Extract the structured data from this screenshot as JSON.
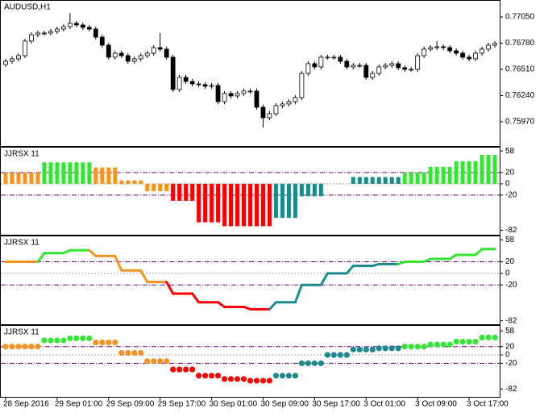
{
  "chart_data": [
    {
      "type": "candlestick",
      "title": "AUDUSD,H1",
      "bull_color": "#ffffff",
      "bear_color": "#000000",
      "edge_color": "#000000",
      "xlim": [
        -0.75,
        76.75
      ],
      "ylim": [
        0.7572,
        0.77216
      ],
      "yticks": [
        {
          "value": 0.7705,
          "label": "0.77050"
        },
        {
          "value": 0.7678,
          "label": "0.76780"
        },
        {
          "value": 0.7651,
          "label": "0.76510"
        },
        {
          "value": 0.7624,
          "label": "0.76240"
        },
        {
          "value": 0.7597,
          "label": "0.75970"
        }
      ],
      "open": [
        0.7656,
        0.76593,
        0.76618,
        0.76651,
        0.76801,
        0.76867,
        0.76884,
        0.76884,
        0.769,
        0.76925,
        0.7695,
        0.76984,
        0.76967,
        0.76942,
        0.76925,
        0.76842,
        0.76759,
        0.76635,
        0.76676,
        0.76651,
        0.76593,
        0.76618,
        0.76651,
        0.76676,
        0.76734,
        0.76718,
        0.76635,
        0.76302,
        0.76427,
        0.76385,
        0.7636,
        0.76352,
        0.76335,
        0.76344,
        0.76177,
        0.76261,
        0.76236,
        0.76261,
        0.76286,
        0.76286,
        0.76119,
        0.76011,
        0.76053,
        0.76136,
        0.76153,
        0.76177,
        0.76219,
        0.76468,
        0.76568,
        0.76535,
        0.76635,
        0.76635,
        0.76635,
        0.76593,
        0.76535,
        0.76551,
        0.76551,
        0.76427,
        0.76468,
        0.76535,
        0.76551,
        0.76568,
        0.76527,
        0.7651,
        0.7651,
        0.76651,
        0.76718,
        0.76734,
        0.76743,
        0.76734,
        0.76701,
        0.76676,
        0.76635,
        0.76618,
        0.76676,
        0.76718,
        0.76759
      ],
      "high": [
        0.76618,
        0.76643,
        0.76676,
        0.76826,
        0.76892,
        0.76909,
        0.76909,
        0.76925,
        0.7695,
        0.76975,
        0.7709,
        0.77009,
        0.76992,
        0.76967,
        0.7695,
        0.76867,
        0.76784,
        0.76701,
        0.76701,
        0.76676,
        0.76643,
        0.76676,
        0.76701,
        0.76759,
        0.76884,
        0.76743,
        0.7666,
        0.76452,
        0.76452,
        0.7641,
        0.76385,
        0.76377,
        0.76369,
        0.76369,
        0.76286,
        0.76286,
        0.76286,
        0.76311,
        0.76311,
        0.76311,
        0.76144,
        0.76078,
        0.76161,
        0.76178,
        0.76202,
        0.76244,
        0.76493,
        0.76593,
        0.76593,
        0.7666,
        0.7666,
        0.7666,
        0.7666,
        0.76618,
        0.76576,
        0.76576,
        0.76576,
        0.76493,
        0.7656,
        0.76576,
        0.76593,
        0.76593,
        0.76552,
        0.76535,
        0.76676,
        0.76743,
        0.76759,
        0.768,
        0.76768,
        0.76759,
        0.76726,
        0.76701,
        0.7666,
        0.76701,
        0.76743,
        0.76784,
        0.76801
      ],
      "low": [
        0.76535,
        0.76568,
        0.76593,
        0.76626,
        0.76776,
        0.76842,
        0.76859,
        0.76859,
        0.76875,
        0.769,
        0.76925,
        0.76942,
        0.76917,
        0.769,
        0.76817,
        0.76734,
        0.7661,
        0.7661,
        0.76626,
        0.76568,
        0.76568,
        0.76593,
        0.76626,
        0.76651,
        0.76693,
        0.7661,
        0.76277,
        0.76277,
        0.7636,
        0.76335,
        0.76327,
        0.7631,
        0.7631,
        0.76152,
        0.76152,
        0.76211,
        0.76211,
        0.76236,
        0.76261,
        0.76094,
        0.7591,
        0.75986,
        0.76028,
        0.76111,
        0.76128,
        0.76152,
        0.76194,
        0.76443,
        0.7651,
        0.7651,
        0.7661,
        0.7661,
        0.76568,
        0.7651,
        0.7651,
        0.76526,
        0.76402,
        0.76402,
        0.76443,
        0.7651,
        0.76526,
        0.76502,
        0.76485,
        0.76485,
        0.76485,
        0.76626,
        0.76693,
        0.76709,
        0.76709,
        0.76676,
        0.76651,
        0.7661,
        0.76593,
        0.76593,
        0.76651,
        0.76693,
        0.76734
      ],
      "close": [
        0.76593,
        0.76618,
        0.76651,
        0.76801,
        0.76867,
        0.76884,
        0.76884,
        0.769,
        0.76925,
        0.7695,
        0.76984,
        0.76967,
        0.76942,
        0.76925,
        0.76842,
        0.76759,
        0.76635,
        0.76676,
        0.76651,
        0.76593,
        0.76618,
        0.76651,
        0.76676,
        0.76734,
        0.76718,
        0.76635,
        0.76302,
        0.76427,
        0.76385,
        0.7636,
        0.76352,
        0.76335,
        0.76344,
        0.76177,
        0.76261,
        0.76236,
        0.76261,
        0.76286,
        0.76286,
        0.76119,
        0.76011,
        0.76053,
        0.76136,
        0.76153,
        0.76177,
        0.76219,
        0.76468,
        0.76568,
        0.76535,
        0.76635,
        0.76635,
        0.76635,
        0.76593,
        0.76535,
        0.76551,
        0.76551,
        0.76427,
        0.76468,
        0.76535,
        0.76551,
        0.76568,
        0.76527,
        0.7651,
        0.7651,
        0.76651,
        0.76718,
        0.76734,
        0.76743,
        0.76734,
        0.76701,
        0.76676,
        0.76635,
        0.76618,
        0.76676,
        0.76718,
        0.76759,
        0.76776
      ]
    },
    {
      "type": "bar",
      "title": "JJRSX 11",
      "xlim": [
        -0.75,
        76.75
      ],
      "ylim": [
        -90,
        64
      ],
      "yticks": [
        58,
        20,
        0,
        -20,
        -82
      ],
      "values": [
        20,
        20,
        20,
        20,
        20,
        20,
        38,
        38,
        38,
        38,
        38,
        38,
        38,
        38,
        29,
        29,
        29,
        29,
        6,
        6,
        6,
        6,
        -13,
        -13,
        -13,
        -13,
        -30,
        -30,
        -30,
        -30,
        -68,
        -68,
        -68,
        -68,
        -75,
        -75,
        -75,
        -75,
        -75,
        -75,
        -75,
        -75,
        -60,
        -60,
        -60,
        -60,
        -22,
        -22,
        -22,
        -22,
        0,
        0,
        0,
        0,
        12,
        12,
        12,
        12,
        12,
        12,
        12,
        12,
        20,
        20,
        20,
        20,
        30,
        30,
        30,
        30,
        40,
        40,
        40,
        40,
        51,
        51,
        51
      ],
      "colors": [
        "#f7931e",
        "#f7931e",
        "#f7931e",
        "#f7931e",
        "#f7931e",
        "#f7931e",
        "#33e633",
        "#33e633",
        "#33e633",
        "#33e633",
        "#33e633",
        "#33e633",
        "#33e633",
        "#33e633",
        "#f7931e",
        "#f7931e",
        "#f7931e",
        "#f7931e",
        "#f7931e",
        "#f7931e",
        "#f7931e",
        "#f7931e",
        "#f7931e",
        "#f7931e",
        "#f7931e",
        "#f7931e",
        "#ff0000",
        "#ff0000",
        "#ff0000",
        "#ff0000",
        "#ff0000",
        "#ff0000",
        "#ff0000",
        "#ff0000",
        "#ff0000",
        "#ff0000",
        "#ff0000",
        "#ff0000",
        "#ff0000",
        "#ff0000",
        "#ff0000",
        "#ff0000",
        "#1a8a8a",
        "#1a8a8a",
        "#1a8a8a",
        "#1a8a8a",
        "#1a8a8a",
        "#1a8a8a",
        "#1a8a8a",
        "#1a8a8a",
        "#1a8a8a",
        "#1a8a8a",
        "#1a8a8a",
        "#1a8a8a",
        "#1a8a8a",
        "#1a8a8a",
        "#1a8a8a",
        "#1a8a8a",
        "#1a8a8a",
        "#1a8a8a",
        "#1a8a8a",
        "#1a8a8a",
        "#33e633",
        "#33e633",
        "#33e633",
        "#33e633",
        "#33e633",
        "#33e633",
        "#33e633",
        "#33e633",
        "#33e633",
        "#33e633",
        "#33e633",
        "#33e633",
        "#33e633",
        "#33e633",
        "#33e633"
      ]
    },
    {
      "type": "line",
      "title": "JJRSX 11",
      "xlim": [
        -0.75,
        76.75
      ],
      "ylim": [
        -88,
        64
      ],
      "yticks": [
        58,
        20,
        0,
        -20,
        -82
      ],
      "values": [
        20,
        20,
        20,
        20,
        20,
        20,
        35,
        35,
        35,
        35,
        40,
        40,
        40,
        40,
        30,
        30,
        30,
        30,
        5,
        5,
        5,
        5,
        -15,
        -15,
        -15,
        -15,
        -35,
        -35,
        -35,
        -35,
        -50,
        -50,
        -50,
        -50,
        -58,
        -58,
        -58,
        -58,
        -62,
        -62,
        -62,
        -62,
        -50,
        -50,
        -50,
        -50,
        -20,
        -20,
        -20,
        -20,
        0,
        0,
        0,
        0,
        13,
        13,
        13,
        13,
        16,
        16,
        16,
        16,
        20,
        20,
        20,
        20,
        25,
        25,
        25,
        25,
        32,
        32,
        32,
        32,
        42,
        42,
        42
      ],
      "colors": [
        "#f7931e",
        "#f7931e",
        "#f7931e",
        "#f7931e",
        "#f7931e",
        "#f7931e",
        "#33e633",
        "#33e633",
        "#33e633",
        "#33e633",
        "#33e633",
        "#33e633",
        "#33e633",
        "#33e633",
        "#f7931e",
        "#f7931e",
        "#f7931e",
        "#f7931e",
        "#f7931e",
        "#f7931e",
        "#f7931e",
        "#f7931e",
        "#f7931e",
        "#f7931e",
        "#f7931e",
        "#f7931e",
        "#ff0000",
        "#ff0000",
        "#ff0000",
        "#ff0000",
        "#ff0000",
        "#ff0000",
        "#ff0000",
        "#ff0000",
        "#ff0000",
        "#ff0000",
        "#ff0000",
        "#ff0000",
        "#ff0000",
        "#ff0000",
        "#ff0000",
        "#ff0000",
        "#1a8a8a",
        "#1a8a8a",
        "#1a8a8a",
        "#1a8a8a",
        "#1a8a8a",
        "#1a8a8a",
        "#1a8a8a",
        "#1a8a8a",
        "#1a8a8a",
        "#1a8a8a",
        "#1a8a8a",
        "#1a8a8a",
        "#1a8a8a",
        "#1a8a8a",
        "#1a8a8a",
        "#1a8a8a",
        "#1a8a8a",
        "#1a8a8a",
        "#1a8a8a",
        "#1a8a8a",
        "#33e633",
        "#33e633",
        "#33e633",
        "#33e633",
        "#33e633",
        "#33e633",
        "#33e633",
        "#33e633",
        "#33e633",
        "#33e633",
        "#33e633",
        "#33e633",
        "#33e633",
        "#33e633",
        "#33e633"
      ]
    },
    {
      "type": "dot",
      "title": "JJRSX 11",
      "xlim": [
        -0.75,
        76.75
      ],
      "ylim": [
        -101,
        70
      ],
      "yticks": [
        58,
        20,
        0,
        -20,
        -82
      ],
      "values": [
        20,
        20,
        20,
        20,
        20,
        20,
        35,
        35,
        35,
        35,
        40,
        40,
        40,
        40,
        30,
        30,
        30,
        30,
        5,
        5,
        5,
        5,
        -15,
        -15,
        -15,
        -15,
        -35,
        -35,
        -35,
        -35,
        -50,
        -50,
        -50,
        -50,
        -58,
        -58,
        -58,
        -58,
        -62,
        -62,
        -62,
        -62,
        -50,
        -50,
        -50,
        -50,
        -20,
        -20,
        -20,
        -20,
        0,
        0,
        0,
        0,
        13,
        13,
        13,
        13,
        16,
        16,
        16,
        16,
        20,
        20,
        20,
        20,
        25,
        25,
        25,
        25,
        32,
        32,
        32,
        32,
        42,
        42,
        42
      ],
      "colors": [
        "#f7931e",
        "#f7931e",
        "#f7931e",
        "#f7931e",
        "#f7931e",
        "#f7931e",
        "#33e633",
        "#33e633",
        "#33e633",
        "#33e633",
        "#33e633",
        "#33e633",
        "#33e633",
        "#33e633",
        "#f7931e",
        "#f7931e",
        "#f7931e",
        "#f7931e",
        "#f7931e",
        "#f7931e",
        "#f7931e",
        "#f7931e",
        "#f7931e",
        "#f7931e",
        "#f7931e",
        "#f7931e",
        "#ff0000",
        "#ff0000",
        "#ff0000",
        "#ff0000",
        "#ff0000",
        "#ff0000",
        "#ff0000",
        "#ff0000",
        "#ff0000",
        "#ff0000",
        "#ff0000",
        "#ff0000",
        "#ff0000",
        "#ff0000",
        "#ff0000",
        "#ff0000",
        "#1a8a8a",
        "#1a8a8a",
        "#1a8a8a",
        "#1a8a8a",
        "#1a8a8a",
        "#1a8a8a",
        "#1a8a8a",
        "#1a8a8a",
        "#1a8a8a",
        "#1a8a8a",
        "#1a8a8a",
        "#1a8a8a",
        "#1a8a8a",
        "#1a8a8a",
        "#1a8a8a",
        "#1a8a8a",
        "#1a8a8a",
        "#1a8a8a",
        "#1a8a8a",
        "#1a8a8a",
        "#33e633",
        "#33e633",
        "#33e633",
        "#33e633",
        "#33e633",
        "#33e633",
        "#33e633",
        "#33e633",
        "#33e633",
        "#33e633",
        "#33e633",
        "#33e633",
        "#33e633",
        "#33e633",
        "#33e633"
      ],
      "xticks": [
        {
          "value": 0,
          "label": "28 Sep 2016"
        },
        {
          "value": 8,
          "label": "29 Sep 01:00"
        },
        {
          "value": 16,
          "label": "29 Sep 09:00"
        },
        {
          "value": 24,
          "label": "29 Sep 17:00"
        },
        {
          "value": 32,
          "label": "30 Sep 01:00"
        },
        {
          "value": 40,
          "label": "30 Sep 09:00"
        },
        {
          "value": 48,
          "label": "30 Sep 17:00"
        },
        {
          "value": 56,
          "label": "3 Oct 01:00"
        },
        {
          "value": 64,
          "label": "3 Oct 09:00"
        },
        {
          "value": 72,
          "label": "3 Oct 17:00"
        }
      ]
    }
  ]
}
